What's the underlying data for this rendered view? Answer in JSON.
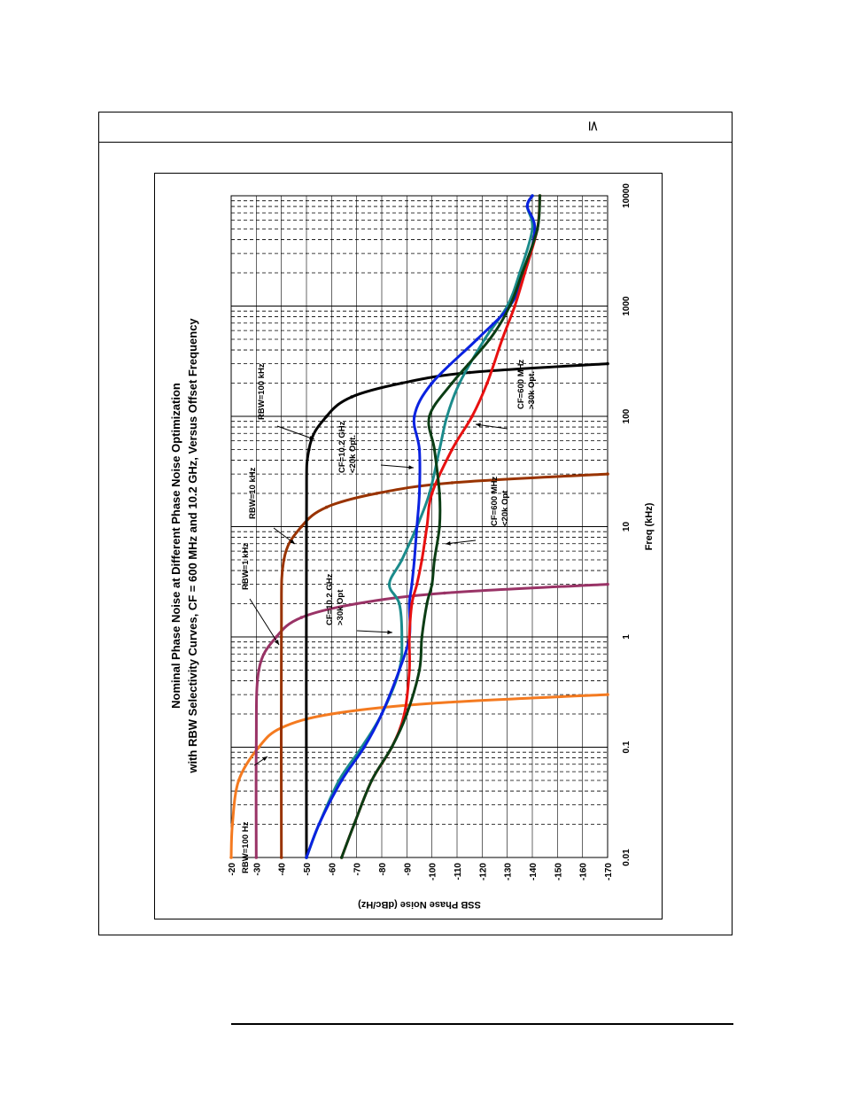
{
  "doc": {
    "header_symbol": "≤"
  },
  "chart_data": {
    "type": "line",
    "title": "Nominal Phase Noise at Different Phase Noise Optimization",
    "subtitle": "with RBW Selectivity Curves, CF = 600 MHz and 10.2 GHz, Versus Offset Frequency",
    "xlabel": "Freq (kHz)",
    "ylabel": "SSB Phase Noise (dBc/Hz)",
    "x_scale": "log",
    "xlim": [
      0.01,
      10000
    ],
    "ylim": [
      -170,
      -20
    ],
    "x_ticks": [
      "0.01",
      "0.1",
      "1",
      "10",
      "100",
      "1000",
      "10000"
    ],
    "y_ticks": [
      "-20",
      "-30",
      "-40",
      "-50",
      "-60",
      "-70",
      "-80",
      "-90",
      "-100",
      "-110",
      "-120",
      "-130",
      "-140",
      "-150",
      "-160",
      "-170"
    ],
    "grid": true,
    "series": [
      {
        "name": "RBW=100 Hz",
        "color": "#f47a20",
        "x": [
          0.01,
          0.02,
          0.05,
          0.1,
          0.15,
          0.2,
          0.25,
          0.3
        ],
        "y": [
          -20,
          -20.5,
          -23,
          -31,
          -40,
          -60,
          -100,
          -170
        ]
      },
      {
        "name": "RBW=1 kHz",
        "color": "#993366",
        "x": [
          0.01,
          0.1,
          0.5,
          1,
          1.5,
          2,
          2.5,
          3
        ],
        "y": [
          -30,
          -30,
          -31,
          -38,
          -48,
          -70,
          -105,
          -170
        ]
      },
      {
        "name": "RBW=10 kHz",
        "color": "#993300",
        "x": [
          0.01,
          1,
          5,
          10,
          15,
          20,
          25,
          30
        ],
        "y": [
          -40,
          -40,
          -41,
          -48,
          -58,
          -78,
          -108,
          -170
        ]
      },
      {
        "name": "RBW=100 kHz",
        "color": "#000000",
        "x": [
          0.01,
          10,
          50,
          100,
          150,
          200,
          250,
          300
        ],
        "y": [
          -50,
          -50,
          -51,
          -58,
          -68,
          -88,
          -115,
          -170
        ]
      },
      {
        "name": "CF=10.2 GHz >30k Opt",
        "color": "#1b8b8b",
        "x": [
          0.01,
          0.02,
          0.05,
          0.1,
          0.2,
          0.5,
          1,
          2,
          3,
          5,
          10,
          20,
          50,
          100,
          200,
          500,
          1000,
          2000,
          5000,
          8000,
          10000
        ],
        "y": [
          -50,
          -55,
          -63,
          -72,
          -80,
          -87,
          -88,
          -87,
          -83,
          -88,
          -94,
          -99,
          -103,
          -106,
          -111,
          -121,
          -130,
          -135,
          -140,
          -138,
          -140
        ]
      },
      {
        "name": "CF=10.2 GHz <20k Opt.",
        "color": "#0a22e0",
        "x": [
          0.01,
          0.02,
          0.05,
          0.1,
          0.2,
          0.5,
          1,
          2,
          3,
          5,
          10,
          20,
          50,
          100,
          200,
          500,
          1000,
          2000,
          5000,
          8000,
          10000
        ],
        "y": [
          -50,
          -55,
          -64,
          -73,
          -80,
          -87,
          -91,
          -91,
          -92,
          -93,
          -94,
          -95,
          -95,
          -93,
          -100,
          -118,
          -131,
          -137,
          -141,
          -138,
          -140
        ]
      },
      {
        "name": "CF=600 MHz >30k Opt.",
        "color": "#e81010",
        "x": [
          0.01,
          0.02,
          0.05,
          0.1,
          0.2,
          0.5,
          1,
          2,
          3,
          5,
          10,
          20,
          50,
          100,
          200,
          500,
          1000,
          2000,
          5000,
          10000
        ],
        "y": [
          -64,
          -69,
          -76,
          -84,
          -89,
          -91,
          -91,
          -92,
          -94,
          -96,
          -98,
          -100,
          -108,
          -116,
          -122,
          -128,
          -133,
          -137,
          -142,
          -143
        ]
      },
      {
        "name": "CF=600 MHz <20k Opt",
        "color": "#0b3d14",
        "x": [
          0.01,
          0.02,
          0.05,
          0.1,
          0.2,
          0.5,
          1,
          2,
          3,
          5,
          10,
          20,
          50,
          100,
          200,
          500,
          1000,
          2000,
          5000,
          10000
        ],
        "y": [
          -64,
          -69,
          -76,
          -84,
          -90,
          -95,
          -96,
          -98,
          -100,
          -101,
          -103,
          -103,
          -101,
          -99,
          -108,
          -123,
          -131,
          -136,
          -142,
          -143
        ]
      }
    ],
    "annotations": [
      {
        "lines": [
          "RBW=100 Hz"
        ]
      },
      {
        "lines": [
          "RBW=1 kHz"
        ]
      },
      {
        "lines": [
          "RBW=10 kHz"
        ]
      },
      {
        "lines": [
          "RBW=100 kHz"
        ]
      },
      {
        "lines": [
          "CF=10.2 GHz",
          ">30k Opt"
        ]
      },
      {
        "lines": [
          "CF=10.2 GHz",
          "<20k Opt."
        ]
      },
      {
        "lines": [
          "CF=600 MHz",
          "<20k Opt"
        ]
      },
      {
        "lines": [
          "CF=600 MHz",
          ">30k Opt."
        ]
      }
    ]
  }
}
